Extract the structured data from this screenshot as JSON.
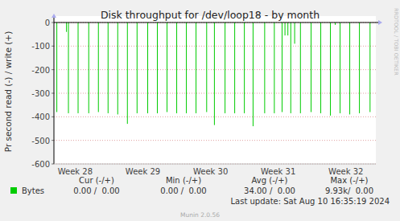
{
  "chart_data": {
    "type": "bar",
    "title": "Disk throughput for /dev/loop18 - by month",
    "y_label": "Pr second read (-) / write (+)",
    "side_text": "RRDTOOL / TOBI OETIKER",
    "x": [
      0.3,
      1.3,
      1.5,
      2.5,
      3.6,
      4.6,
      5.6,
      6.6,
      7.6,
      8.6,
      9.7,
      10.7,
      11.7,
      12.7,
      13.7,
      14.7,
      15.8,
      16.6,
      17.7,
      18.7,
      19.7,
      20.6,
      21.8,
      22.8,
      23.6,
      23.9,
      24.2,
      24.5,
      24.9,
      25.5,
      26.6,
      27.6,
      28.6,
      29.1,
      29.6,
      30.6,
      31.6,
      32.7
    ],
    "series": [
      {
        "name": "Bytes",
        "color": "#00cc00",
        "values": [
          -380,
          -40,
          -385,
          -385,
          -385,
          -380,
          -385,
          -390,
          -430,
          -385,
          -385,
          -385,
          -380,
          -385,
          -385,
          -385,
          -380,
          -435,
          -385,
          -385,
          -385,
          -440,
          -385,
          -385,
          -380,
          -55,
          -55,
          -385,
          -90,
          -385,
          -380,
          -385,
          -395,
          -10,
          -385,
          -390,
          -385,
          -380
        ]
      }
    ],
    "xlim": [
      0,
      33.3
    ],
    "xticks": [
      {
        "value": 2.2,
        "label": "Week 28"
      },
      {
        "value": 9.2,
        "label": "Week 29"
      },
      {
        "value": 16.2,
        "label": "Week 30"
      },
      {
        "value": 23.2,
        "label": "Week 31"
      },
      {
        "value": 30.2,
        "label": "Week 32"
      }
    ],
    "ylim": [
      -600,
      0
    ],
    "yticks": [
      0,
      -100,
      -200,
      -300,
      -400,
      -500,
      -600
    ],
    "grid": true,
    "legend_stats": {
      "columns": [
        "Cur (-/+)",
        "Min (-/+)",
        "Avg (-/+)",
        "Max (-/+)"
      ],
      "values": [
        "0.00 /  0.00",
        "0.00 /  0.00",
        "34.00 /  0.00",
        "9.93k/  0.00"
      ]
    },
    "last_update": "Last update: Sat Aug 10 16:35:19 2024",
    "footer": "Munin 2.0.56"
  }
}
